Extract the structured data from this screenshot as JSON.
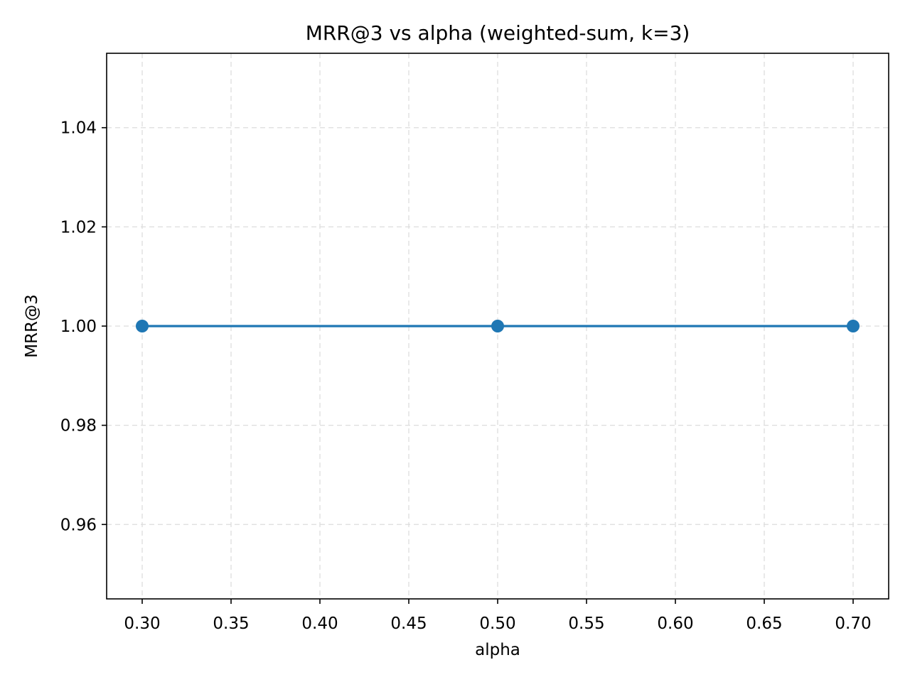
{
  "chart_data": {
    "type": "line",
    "title": "MRR@3 vs alpha (weighted-sum, k=3)",
    "xlabel": "alpha",
    "ylabel": "MRR@3",
    "xlim": [
      0.28,
      0.72
    ],
    "ylim": [
      0.945,
      1.055
    ],
    "xticks": [
      0.3,
      0.35,
      0.4,
      0.45,
      0.5,
      0.55,
      0.6,
      0.65,
      0.7
    ],
    "xtick_labels": [
      "0.30",
      "0.35",
      "0.40",
      "0.45",
      "0.50",
      "0.55",
      "0.60",
      "0.65",
      "0.70"
    ],
    "yticks": [
      0.96,
      0.98,
      1.0,
      1.02,
      1.04
    ],
    "ytick_labels": [
      "0.96",
      "0.98",
      "1.00",
      "1.02",
      "1.04"
    ],
    "grid": true,
    "series": [
      {
        "x": [
          0.3,
          0.5,
          0.7
        ],
        "y": [
          1.0,
          1.0,
          1.0
        ],
        "color": "#1f77b4",
        "marker": "circle"
      }
    ]
  }
}
